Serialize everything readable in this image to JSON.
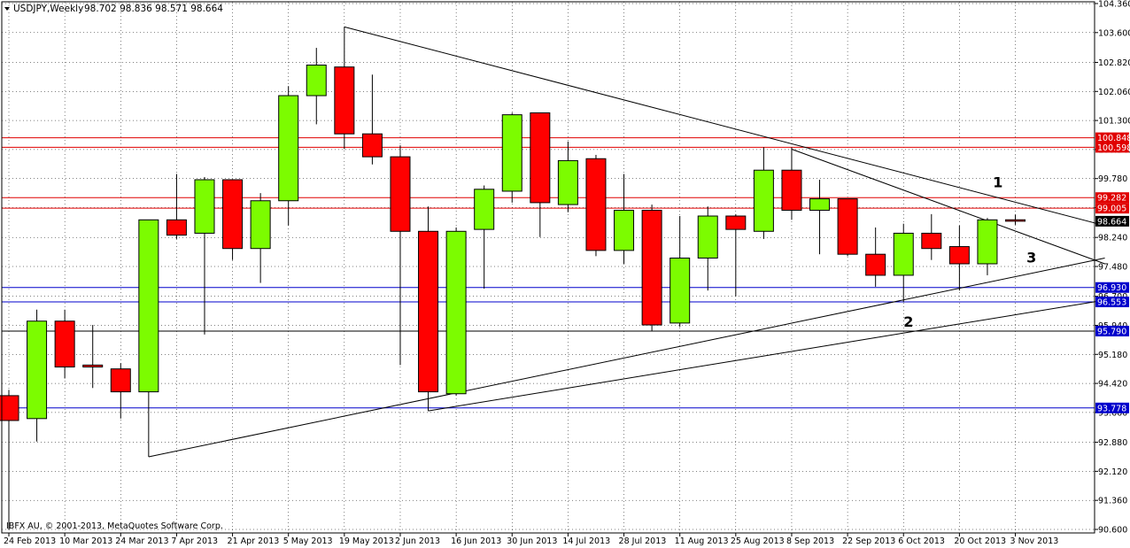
{
  "header": {
    "menu_icon": "triangle-down-icon",
    "symbol": "USDJPY,Weekly",
    "ohlc": "98.702 98.836 98.571 98.664"
  },
  "footer": {
    "copyright": "IBFX AU, © 2001-2013, MetaQuotes Software Corp."
  },
  "colors": {
    "bull": "#7CFC00",
    "bear": "#FF0000",
    "resistance": "#E00000",
    "support": "#0000CC",
    "price_badge": "#000000",
    "grid": "#000000"
  },
  "chart_data": {
    "type": "candlestick",
    "title": "USDJPY,Weekly",
    "ylim": [
      90.6,
      104.36
    ],
    "yticks": [
      "104.360",
      "103.600",
      "102.820",
      "102.060",
      "101.300",
      "100.540",
      "99.780",
      "99.020",
      "98.240",
      "97.480",
      "96.700",
      "95.940",
      "95.180",
      "94.420",
      "93.660",
      "92.880",
      "92.120",
      "91.360",
      "90.600"
    ],
    "xticks": [
      "24 Feb 2013",
      "10 Mar 2013",
      "24 Mar 2013",
      "7 Apr 2013",
      "21 Apr 2013",
      "5 May 2013",
      "19 May 2013",
      "2 Jun 2013",
      "16 Jun 2013",
      "30 Jun 2013",
      "14 Jul 2013",
      "28 Jul 2013",
      "11 Aug 2013",
      "25 Aug 2013",
      "8 Sep 2013",
      "22 Sep 2013",
      "6 Oct 2013",
      "20 Oct 2013",
      "3 Nov 2013"
    ],
    "grid": true,
    "candles": [
      {
        "open": 94.1,
        "high": 94.25,
        "low": 90.6,
        "close": 93.45
      },
      {
        "open": 93.5,
        "high": 96.35,
        "low": 92.9,
        "close": 96.05
      },
      {
        "open": 96.05,
        "high": 96.35,
        "low": 94.55,
        "close": 94.85
      },
      {
        "open": 94.9,
        "high": 95.95,
        "low": 94.3,
        "close": 94.85
      },
      {
        "open": 94.8,
        "high": 94.95,
        "low": 93.5,
        "close": 94.2
      },
      {
        "open": 94.2,
        "high": 98.7,
        "low": 92.5,
        "close": 98.7
      },
      {
        "open": 98.7,
        "high": 99.9,
        "low": 98.2,
        "close": 98.3
      },
      {
        "open": 98.35,
        "high": 99.82,
        "low": 95.7,
        "close": 99.75
      },
      {
        "open": 99.75,
        "high": 99.75,
        "low": 97.65,
        "close": 97.95
      },
      {
        "open": 97.95,
        "high": 99.4,
        "low": 97.05,
        "close": 99.2
      },
      {
        "open": 99.2,
        "high": 102.2,
        "low": 98.55,
        "close": 101.95
      },
      {
        "open": 101.95,
        "high": 103.2,
        "low": 101.2,
        "close": 102.75
      },
      {
        "open": 102.7,
        "high": 103.75,
        "low": 100.55,
        "close": 100.95
      },
      {
        "open": 100.95,
        "high": 102.5,
        "low": 100.15,
        "close": 100.35
      },
      {
        "open": 100.35,
        "high": 100.65,
        "low": 94.9,
        "close": 98.4
      },
      {
        "open": 98.4,
        "high": 99.05,
        "low": 93.7,
        "close": 94.2
      },
      {
        "open": 94.15,
        "high": 98.5,
        "low": 94.1,
        "close": 98.4
      },
      {
        "open": 98.45,
        "high": 99.6,
        "low": 96.9,
        "close": 99.5
      },
      {
        "open": 99.45,
        "high": 101.5,
        "low": 99.15,
        "close": 101.45
      },
      {
        "open": 101.5,
        "high": 101.5,
        "low": 98.25,
        "close": 99.15
      },
      {
        "open": 99.1,
        "high": 100.75,
        "low": 98.9,
        "close": 100.25
      },
      {
        "open": 100.3,
        "high": 100.4,
        "low": 97.75,
        "close": 97.9
      },
      {
        "open": 97.9,
        "high": 99.9,
        "low": 97.55,
        "close": 98.95
      },
      {
        "open": 98.95,
        "high": 99.1,
        "low": 95.8,
        "close": 95.95
      },
      {
        "open": 96.0,
        "high": 98.8,
        "low": 95.9,
        "close": 97.7
      },
      {
        "open": 97.7,
        "high": 99.05,
        "low": 96.85,
        "close": 98.8
      },
      {
        "open": 98.8,
        "high": 98.85,
        "low": 96.7,
        "close": 98.45
      },
      {
        "open": 98.4,
        "high": 100.6,
        "low": 98.2,
        "close": 100.0
      },
      {
        "open": 100.0,
        "high": 100.6,
        "low": 98.7,
        "close": 98.95
      },
      {
        "open": 98.95,
        "high": 99.75,
        "low": 97.8,
        "close": 99.25
      },
      {
        "open": 99.25,
        "high": 99.25,
        "low": 97.75,
        "close": 97.8
      },
      {
        "open": 97.8,
        "high": 98.5,
        "low": 96.95,
        "close": 97.25
      },
      {
        "open": 97.25,
        "high": 98.6,
        "low": 96.55,
        "close": 98.35
      },
      {
        "open": 98.35,
        "high": 98.85,
        "low": 97.65,
        "close": 97.95
      },
      {
        "open": 98.0,
        "high": 98.55,
        "low": 96.85,
        "close": 97.55
      },
      {
        "open": 97.55,
        "high": 98.75,
        "low": 97.25,
        "close": 98.7
      },
      {
        "open": 98.702,
        "high": 98.836,
        "low": 98.571,
        "close": 98.664
      }
    ],
    "horizontal_levels": [
      {
        "value": "100.848",
        "kind": "resistance"
      },
      {
        "value": "100.598",
        "kind": "resistance"
      },
      {
        "value": "99.282",
        "kind": "resistance"
      },
      {
        "value": "99.005",
        "kind": "resistance"
      },
      {
        "value": "96.930",
        "kind": "support"
      },
      {
        "value": "96.553",
        "kind": "support"
      },
      {
        "value": "95.790",
        "kind": "neutral"
      },
      {
        "value": "93.778",
        "kind": "support"
      }
    ],
    "current_price": "98.664",
    "annotations": [
      "1",
      "2",
      "3"
    ]
  }
}
